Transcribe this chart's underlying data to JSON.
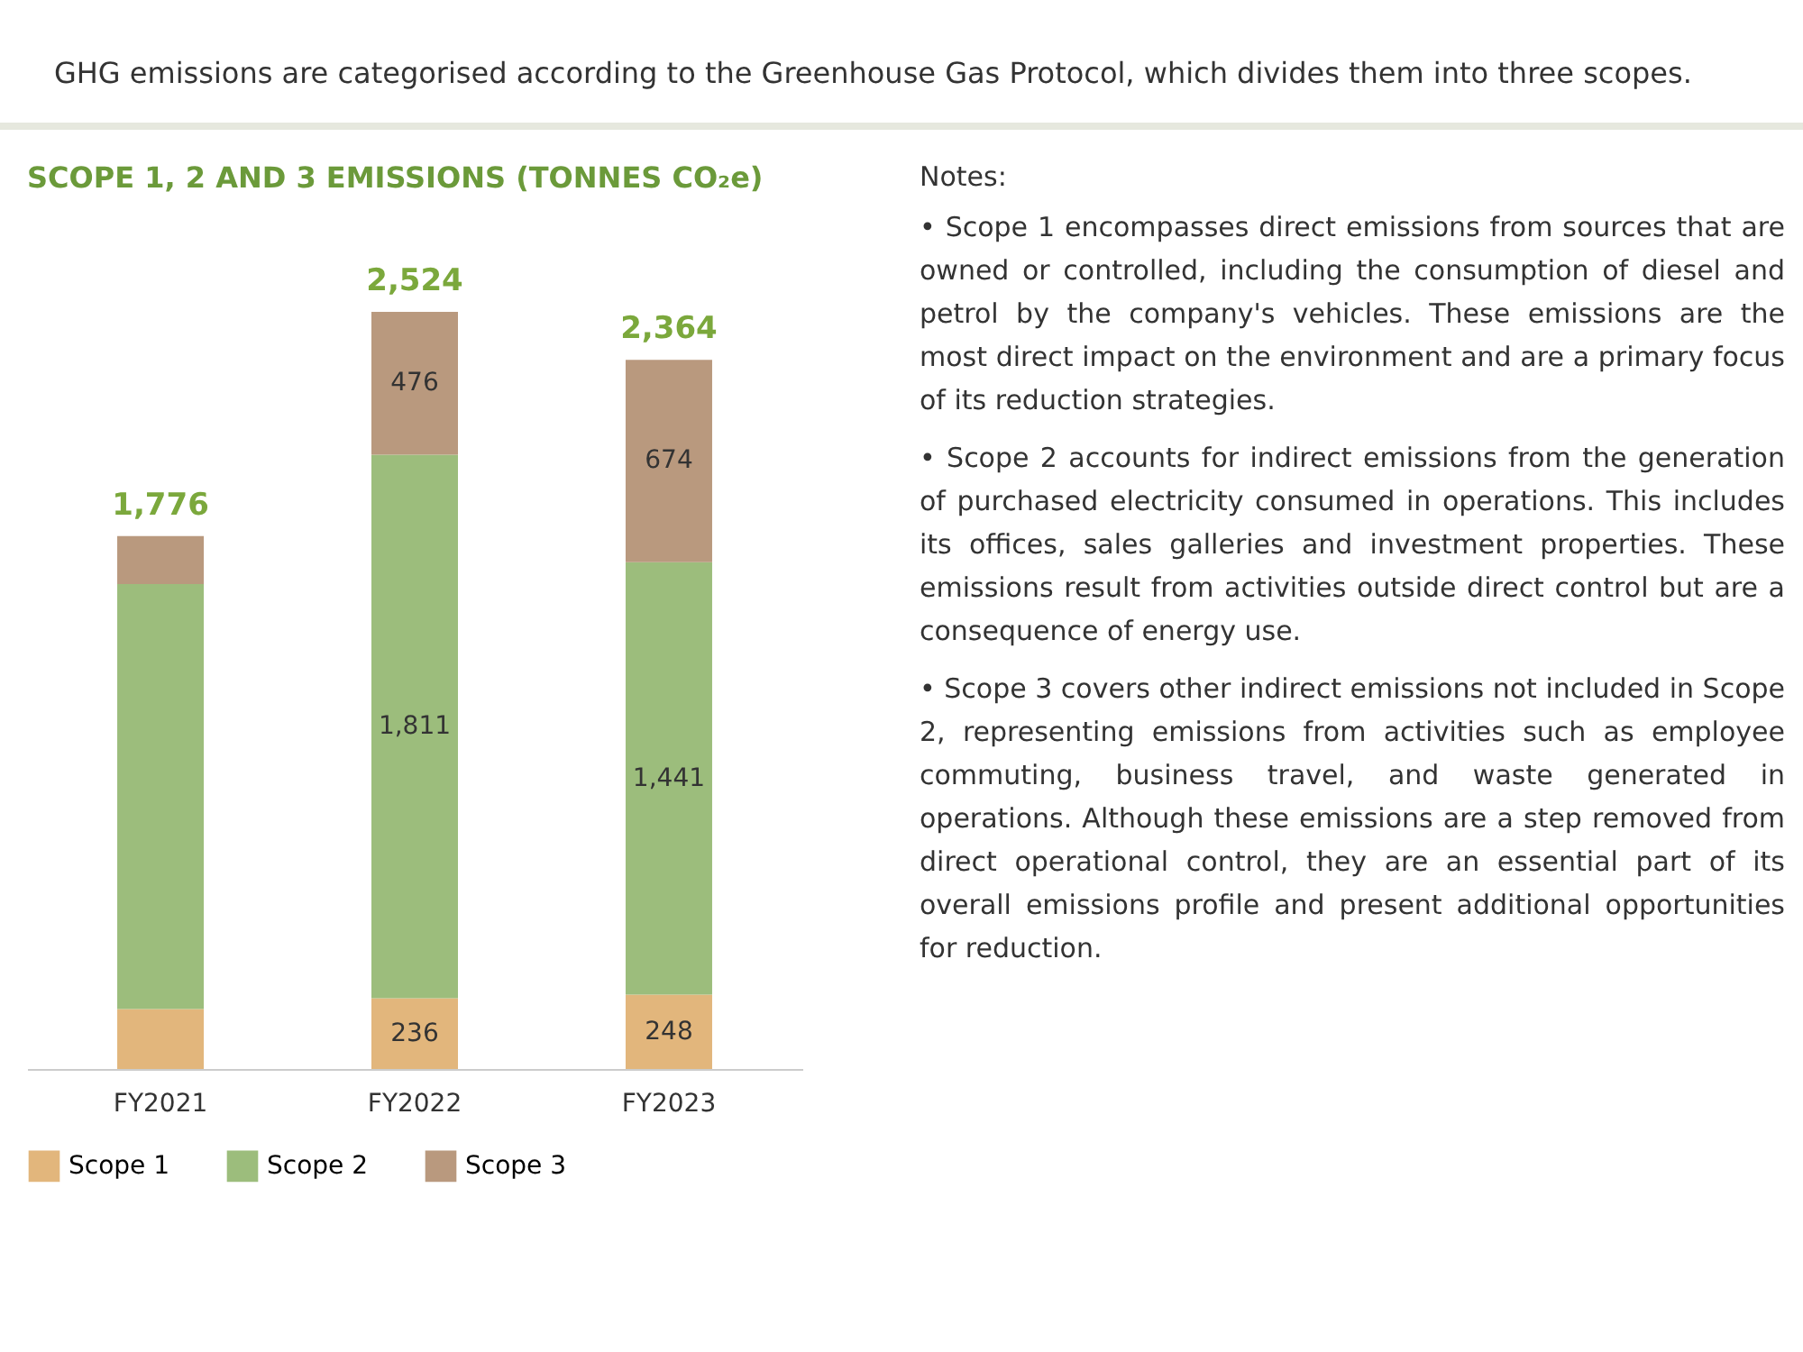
{
  "chart_data": {
    "type": "bar",
    "title": "SCOPE 1, 2 AND 3 EMISSIONS (TONNES CO₂e)",
    "categories": [
      "FY2021",
      "FY2022",
      "FY2023"
    ],
    "stacked": true,
    "legend": "bottom",
    "series": [
      {
        "name": "Scope 1",
        "color": "#e2b67c",
        "values": [
          200,
          236,
          248
        ],
        "value_labels": [
          null,
          "236",
          "248"
        ]
      },
      {
        "name": "Scope 2",
        "color": "#9cbd7c",
        "values": [
          1416,
          1811,
          1441
        ],
        "value_labels": [
          null,
          "1,811",
          "1,441"
        ]
      },
      {
        "name": "Scope 3",
        "color": "#b9997e",
        "values": [
          160,
          476,
          674
        ],
        "value_labels": [
          null,
          "476",
          "674"
        ]
      }
    ],
    "totals": [
      "1,776",
      "2,524",
      "2,364"
    ],
    "annotations": [
      "GHG emissions are categorised according to the Greenhouse Gas Protocol, which divides them into three scopes.",
      "Notes:",
      "• Scope 1 encompasses direct emissions from sources that are owned or controlled, including the consumption of diesel and petrol by the company's vehicles. These emissions are the most direct impact on the environment and are a primary focus of its reduction strategies.",
      "• Scope 2 accounts for indirect emissions from the generation of purchased electricity consumed in operations. This includes its offices, sales galleries and investment properties. These emissions result from activities outside direct control but are a consequence of energy use.",
      "• Scope 3 covers other indirect emissions not included in Scope 2, representing emissions from activities such as employee commuting, business travel, and waste generated in operations. Although these emissions are a step removed from direct operational control, they are an essential part of its overall emissions profile and present additional opportunities for reduction."
    ]
  }
}
